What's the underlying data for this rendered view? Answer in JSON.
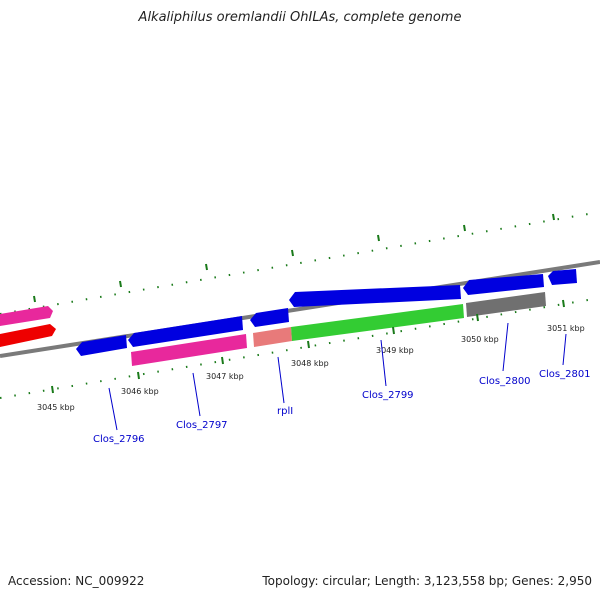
{
  "title": "Alkaliphilus oremlandii OhILAs, complete genome",
  "accession": "Accession: NC_009922",
  "topology": "Topology: circular; Length: 3,123,558 bp; Genes: 2,950",
  "colors": {
    "backbone": "#808080",
    "cds_blue": "#0000e0",
    "cds_pink": "#e8289c",
    "cds_red": "#ee0000",
    "cds_salmon": "#e87a7a",
    "cds_green": "#33cc33",
    "cds_gray": "#707070",
    "tick": "#1a7a1a",
    "label": "#0000cc"
  },
  "kbp_labels": [
    "3045 kbp",
    "3046 kbp",
    "3047 kbp",
    "3048 kbp",
    "3049 kbp",
    "3050 kbp",
    "3051 kbp"
  ],
  "gene_labels": [
    "Clos_2796",
    "Clos_2797",
    "rplI",
    "Clos_2799",
    "Clos_2800",
    "Clos_2801"
  ]
}
